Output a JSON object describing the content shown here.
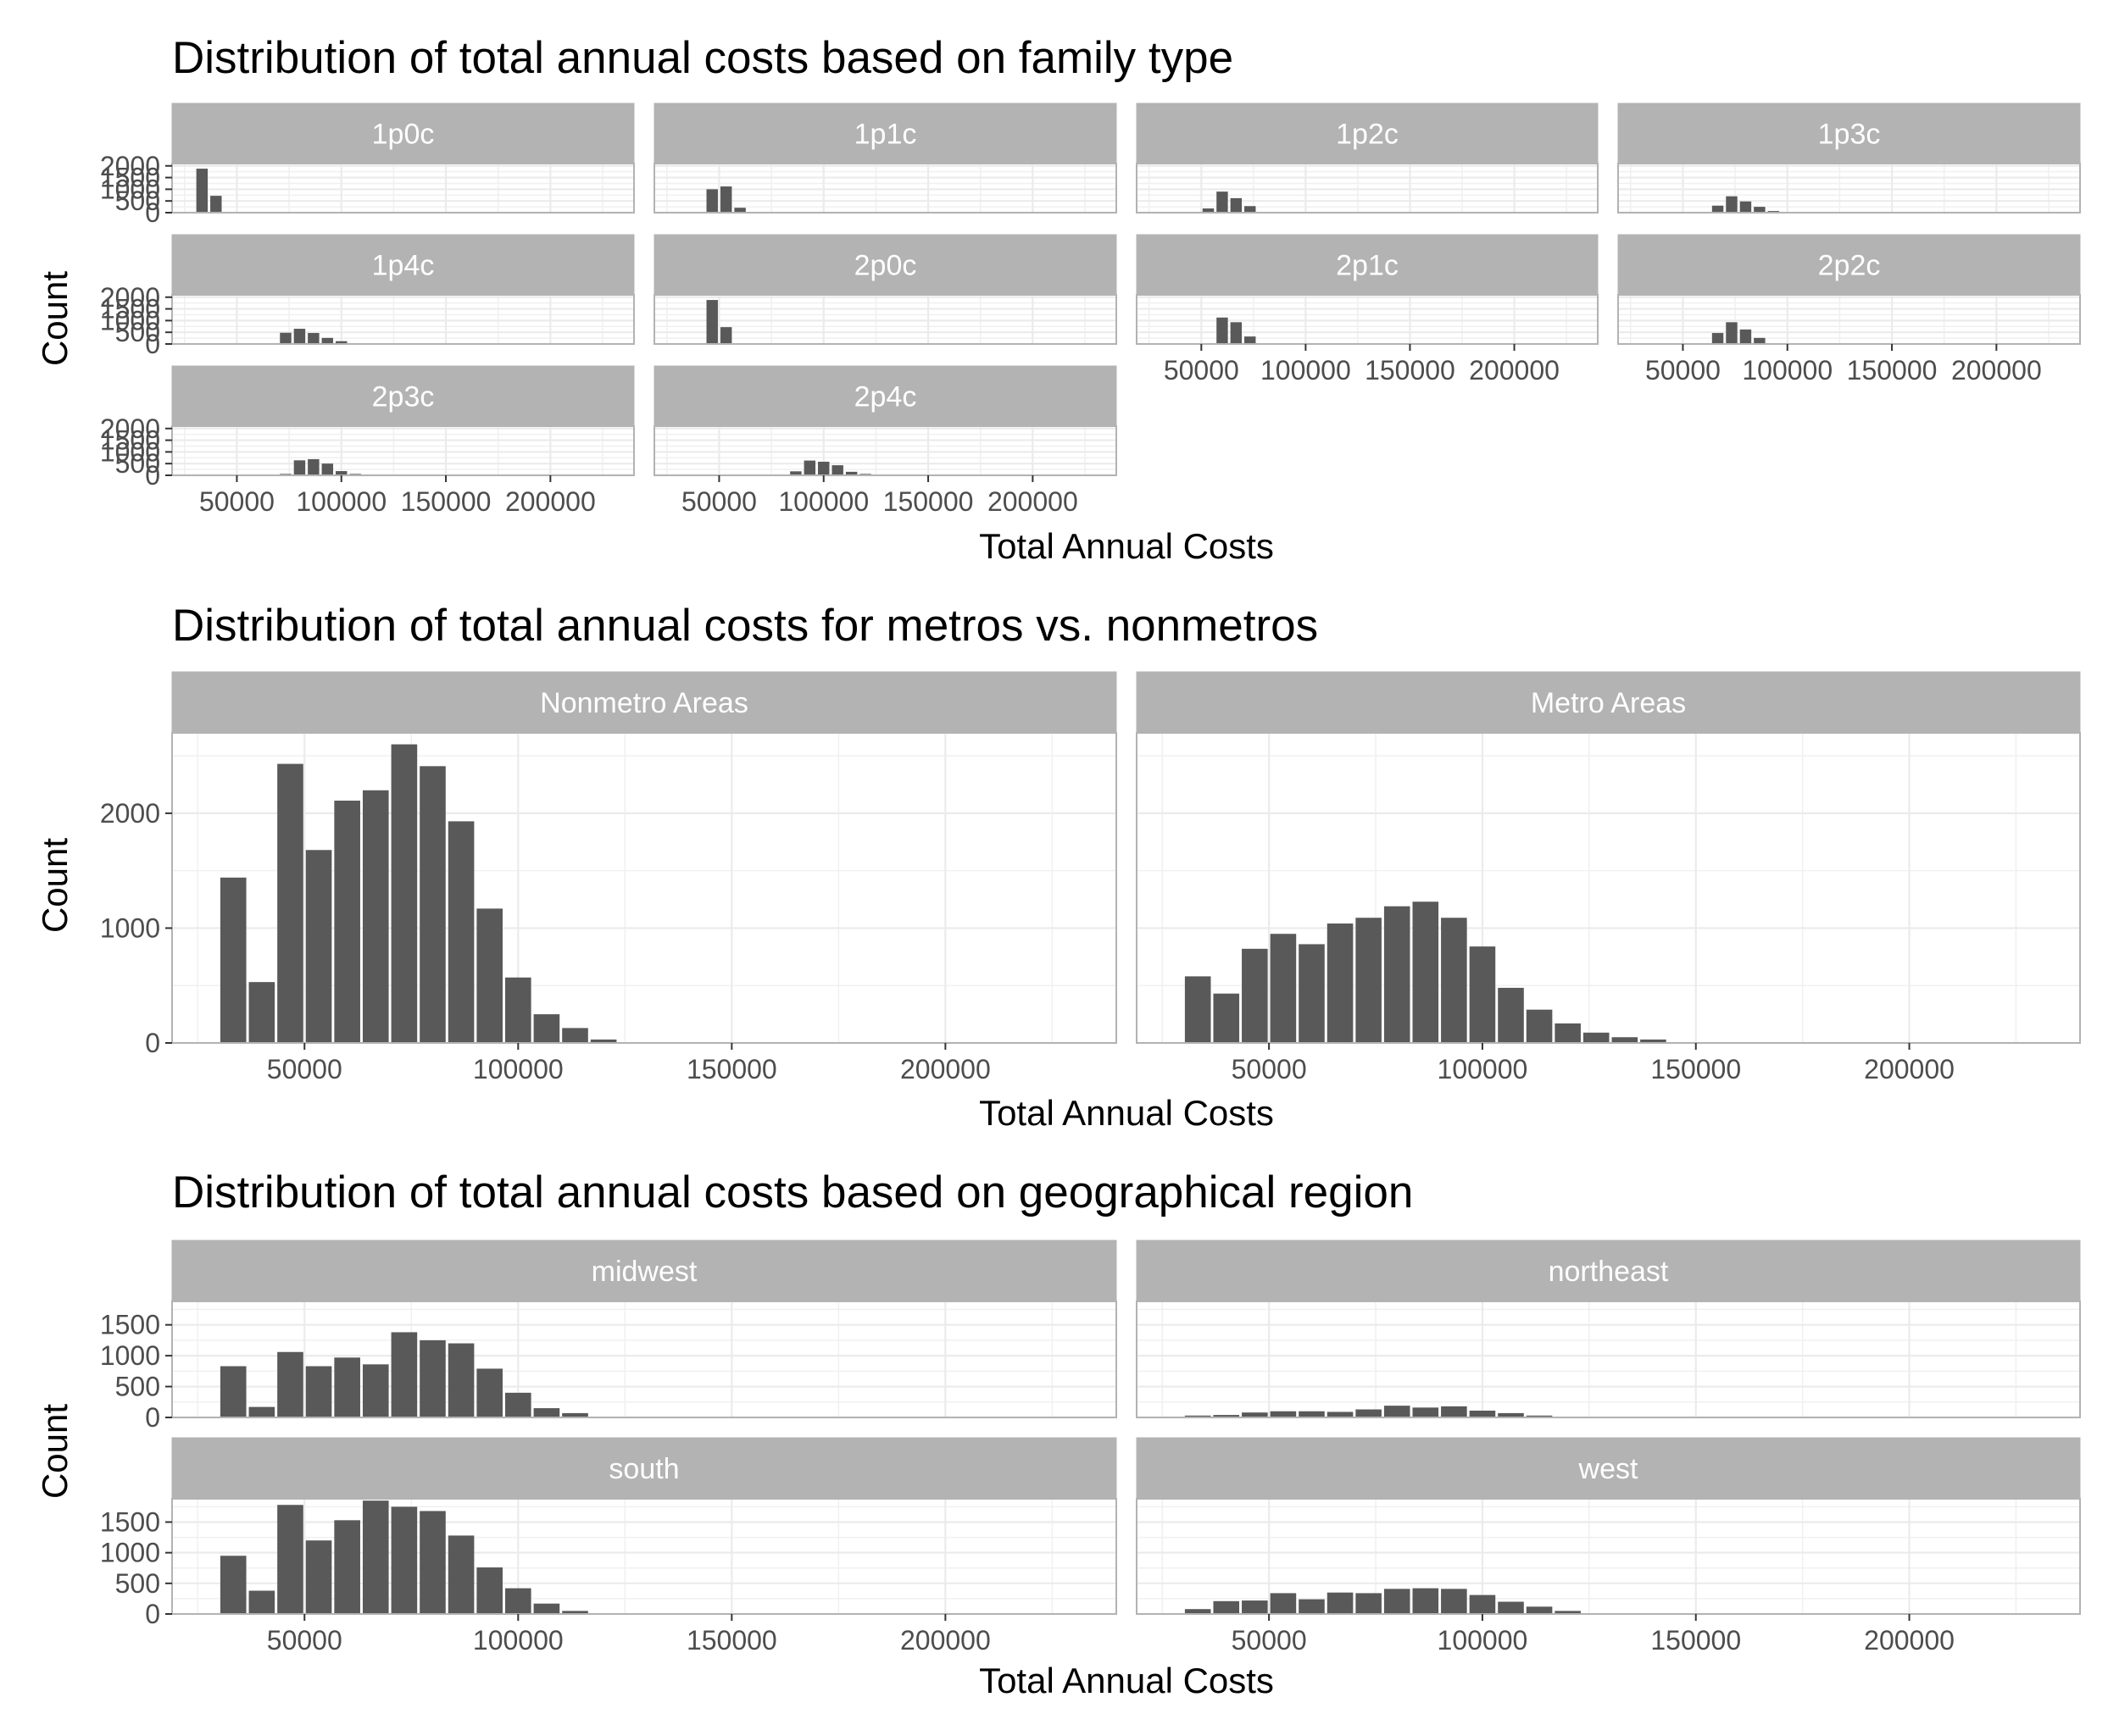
{
  "chart_data": [
    {
      "type": "bar",
      "title": "Distribution of total annual costs based on family type",
      "xlabel": "Total Annual Costs",
      "ylabel": "Count",
      "bin_width": 6667,
      "xlim": [
        19000,
        240000
      ],
      "ylim": [
        0,
        2100
      ],
      "x_ticks": [
        50000,
        100000,
        150000,
        200000
      ],
      "y_ticks": [
        0,
        500,
        1000,
        1500,
        2000
      ],
      "grid": true,
      "panels": [
        {
          "label": "1p0c",
          "bins": [
            {
              "x": 33333,
              "count": 1880
            },
            {
              "x": 40000,
              "count": 720
            }
          ]
        },
        {
          "label": "1p1c",
          "bins": [
            {
              "x": 46667,
              "count": 1000
            },
            {
              "x": 53333,
              "count": 1120
            },
            {
              "x": 60000,
              "count": 210
            }
          ]
        },
        {
          "label": "1p2c",
          "bins": [
            {
              "x": 53333,
              "count": 180
            },
            {
              "x": 60000,
              "count": 900
            },
            {
              "x": 66667,
              "count": 620
            },
            {
              "x": 73333,
              "count": 280
            },
            {
              "x": 80000,
              "count": 30
            }
          ]
        },
        {
          "label": "1p3c",
          "bins": [
            {
              "x": 66667,
              "count": 300
            },
            {
              "x": 73333,
              "count": 700
            },
            {
              "x": 80000,
              "count": 480
            },
            {
              "x": 86667,
              "count": 250
            },
            {
              "x": 93333,
              "count": 70
            }
          ]
        },
        {
          "label": "1p4c",
          "bins": [
            {
              "x": 73333,
              "count": 480
            },
            {
              "x": 80000,
              "count": 650
            },
            {
              "x": 86667,
              "count": 470
            },
            {
              "x": 93333,
              "count": 260
            },
            {
              "x": 100000,
              "count": 120
            }
          ]
        },
        {
          "label": "2p0c",
          "bins": [
            {
              "x": 46667,
              "count": 1880
            },
            {
              "x": 53333,
              "count": 720
            }
          ]
        },
        {
          "label": "2p1c",
          "bins": [
            {
              "x": 60000,
              "count": 1130
            },
            {
              "x": 66667,
              "count": 930
            },
            {
              "x": 73333,
              "count": 320
            }
          ]
        },
        {
          "label": "2p2c",
          "bins": [
            {
              "x": 66667,
              "count": 470
            },
            {
              "x": 73333,
              "count": 930
            },
            {
              "x": 80000,
              "count": 620
            },
            {
              "x": 86667,
              "count": 260
            },
            {
              "x": 93333,
              "count": 30
            }
          ]
        },
        {
          "label": "2p3c",
          "bins": [
            {
              "x": 73333,
              "count": 60
            },
            {
              "x": 80000,
              "count": 640
            },
            {
              "x": 86667,
              "count": 690
            },
            {
              "x": 93333,
              "count": 500
            },
            {
              "x": 100000,
              "count": 180
            },
            {
              "x": 106667,
              "count": 60
            }
          ]
        },
        {
          "label": "2p4c",
          "bins": [
            {
              "x": 86667,
              "count": 170
            },
            {
              "x": 93333,
              "count": 630
            },
            {
              "x": 100000,
              "count": 580
            },
            {
              "x": 106667,
              "count": 430
            },
            {
              "x": 113333,
              "count": 150
            },
            {
              "x": 120000,
              "count": 60
            }
          ]
        }
      ]
    },
    {
      "type": "bar",
      "title": "Distribution of total annual costs for metros vs. nonmetros",
      "xlabel": "Total Annual Costs",
      "ylabel": "Count",
      "bin_width": 6667,
      "xlim": [
        19000,
        240000
      ],
      "ylim": [
        0,
        2700
      ],
      "x_ticks": [
        50000,
        100000,
        150000,
        200000
      ],
      "y_ticks": [
        0,
        1000,
        2000
      ],
      "grid": true,
      "panels": [
        {
          "label": "Nonmetro Areas",
          "bins": [
            {
              "x": 33333,
              "count": 1440
            },
            {
              "x": 40000,
              "count": 530
            },
            {
              "x": 46667,
              "count": 2430
            },
            {
              "x": 53333,
              "count": 1680
            },
            {
              "x": 60000,
              "count": 2110
            },
            {
              "x": 66667,
              "count": 2200
            },
            {
              "x": 73333,
              "count": 2600
            },
            {
              "x": 80000,
              "count": 2410
            },
            {
              "x": 86667,
              "count": 1930
            },
            {
              "x": 93333,
              "count": 1170
            },
            {
              "x": 100000,
              "count": 570
            },
            {
              "x": 106667,
              "count": 250
            },
            {
              "x": 113333,
              "count": 130
            },
            {
              "x": 120000,
              "count": 30
            }
          ]
        },
        {
          "label": "Metro Areas",
          "bins": [
            {
              "x": 33333,
              "count": 580
            },
            {
              "x": 40000,
              "count": 430
            },
            {
              "x": 46667,
              "count": 820
            },
            {
              "x": 53333,
              "count": 950
            },
            {
              "x": 60000,
              "count": 860
            },
            {
              "x": 66667,
              "count": 1040
            },
            {
              "x": 73333,
              "count": 1090
            },
            {
              "x": 80000,
              "count": 1190
            },
            {
              "x": 86667,
              "count": 1230
            },
            {
              "x": 93333,
              "count": 1090
            },
            {
              "x": 100000,
              "count": 840
            },
            {
              "x": 106667,
              "count": 480
            },
            {
              "x": 113333,
              "count": 290
            },
            {
              "x": 120000,
              "count": 170
            },
            {
              "x": 126667,
              "count": 90
            },
            {
              "x": 133333,
              "count": 50
            },
            {
              "x": 140000,
              "count": 30
            }
          ]
        }
      ]
    },
    {
      "type": "bar",
      "title": "Distribution of total annual costs based on geographical region",
      "xlabel": "Total Annual Costs",
      "ylabel": "Count",
      "bin_width": 6667,
      "xlim": [
        19000,
        240000
      ],
      "ylim": [
        0,
        1880
      ],
      "x_ticks": [
        50000,
        100000,
        150000,
        200000
      ],
      "y_ticks": [
        0,
        500,
        1000,
        1500
      ],
      "grid": true,
      "panels": [
        {
          "label": "midwest",
          "bins": [
            {
              "x": 33333,
              "count": 830
            },
            {
              "x": 40000,
              "count": 170
            },
            {
              "x": 46667,
              "count": 1060
            },
            {
              "x": 53333,
              "count": 830
            },
            {
              "x": 60000,
              "count": 970
            },
            {
              "x": 66667,
              "count": 860
            },
            {
              "x": 73333,
              "count": 1380
            },
            {
              "x": 80000,
              "count": 1250
            },
            {
              "x": 86667,
              "count": 1200
            },
            {
              "x": 93333,
              "count": 790
            },
            {
              "x": 100000,
              "count": 400
            },
            {
              "x": 106667,
              "count": 150
            },
            {
              "x": 113333,
              "count": 70
            }
          ]
        },
        {
          "label": "northeast",
          "bins": [
            {
              "x": 33333,
              "count": 30
            },
            {
              "x": 40000,
              "count": 40
            },
            {
              "x": 46667,
              "count": 80
            },
            {
              "x": 53333,
              "count": 100
            },
            {
              "x": 60000,
              "count": 100
            },
            {
              "x": 66667,
              "count": 90
            },
            {
              "x": 73333,
              "count": 130
            },
            {
              "x": 80000,
              "count": 190
            },
            {
              "x": 86667,
              "count": 160
            },
            {
              "x": 93333,
              "count": 180
            },
            {
              "x": 100000,
              "count": 110
            },
            {
              "x": 106667,
              "count": 70
            },
            {
              "x": 113333,
              "count": 30
            }
          ]
        },
        {
          "label": "south",
          "bins": [
            {
              "x": 33333,
              "count": 950
            },
            {
              "x": 40000,
              "count": 380
            },
            {
              "x": 46667,
              "count": 1780
            },
            {
              "x": 53333,
              "count": 1200
            },
            {
              "x": 60000,
              "count": 1530
            },
            {
              "x": 66667,
              "count": 1850
            },
            {
              "x": 73333,
              "count": 1750
            },
            {
              "x": 80000,
              "count": 1680
            },
            {
              "x": 86667,
              "count": 1280
            },
            {
              "x": 93333,
              "count": 760
            },
            {
              "x": 100000,
              "count": 420
            },
            {
              "x": 106667,
              "count": 170
            },
            {
              "x": 113333,
              "count": 50
            }
          ]
        },
        {
          "label": "west",
          "bins": [
            {
              "x": 33333,
              "count": 80
            },
            {
              "x": 40000,
              "count": 210
            },
            {
              "x": 46667,
              "count": 220
            },
            {
              "x": 53333,
              "count": 340
            },
            {
              "x": 60000,
              "count": 240
            },
            {
              "x": 66667,
              "count": 350
            },
            {
              "x": 73333,
              "count": 340
            },
            {
              "x": 80000,
              "count": 410
            },
            {
              "x": 86667,
              "count": 420
            },
            {
              "x": 93333,
              "count": 410
            },
            {
              "x": 100000,
              "count": 310
            },
            {
              "x": 106667,
              "count": 200
            },
            {
              "x": 113333,
              "count": 120
            },
            {
              "x": 120000,
              "count": 50
            }
          ]
        }
      ]
    }
  ]
}
